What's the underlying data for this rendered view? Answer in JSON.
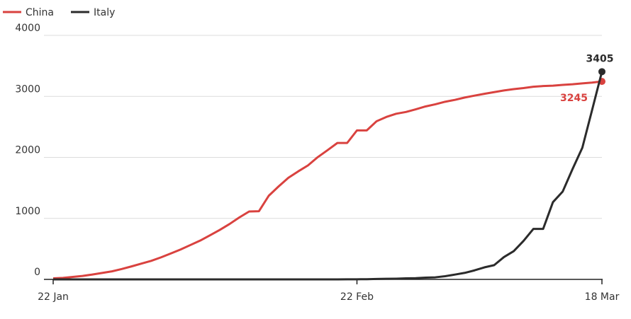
{
  "chart_data": {
    "type": "line",
    "categories": [
      "22 Jan",
      null,
      null,
      null,
      null,
      null,
      null,
      null,
      null,
      null,
      null,
      null,
      null,
      null,
      null,
      null,
      null,
      null,
      null,
      null,
      null,
      null,
      null,
      null,
      null,
      null,
      null,
      null,
      null,
      null,
      null,
      "22 Feb",
      null,
      null,
      null,
      null,
      null,
      null,
      null,
      null,
      null,
      null,
      null,
      null,
      null,
      null,
      null,
      null,
      null,
      null,
      null,
      null,
      null,
      null,
      null,
      null,
      "18 Mar"
    ],
    "series": [
      {
        "name": "China",
        "color": "#d9423f",
        "values": [
          17,
          25,
          41,
          56,
          80,
          106,
          132,
          170,
          213,
          259,
          304,
          361,
          425,
          490,
          563,
          636,
          722,
          811,
          908,
          1016,
          1113,
          1118,
          1371,
          1523,
          1665,
          1770,
          1868,
          2004,
          2118,
          2236,
          2236,
          2442,
          2442,
          2592,
          2663,
          2715,
          2744,
          2788,
          2835,
          2870,
          2912,
          2943,
          2981,
          3012,
          3042,
          3070,
          3097,
          3119,
          3136,
          3158,
          3169,
          3176,
          3189,
          3199,
          3213,
          3226,
          3245
        ]
      },
      {
        "name": "Italy",
        "color": "#2b2b2b",
        "values": [
          0,
          0,
          0,
          0,
          0,
          0,
          0,
          0,
          0,
          0,
          0,
          0,
          0,
          0,
          0,
          0,
          0,
          0,
          0,
          0,
          0,
          0,
          0,
          0,
          0,
          0,
          0,
          0,
          0,
          0,
          1,
          2,
          3,
          7,
          10,
          12,
          17,
          21,
          29,
          34,
          52,
          79,
          107,
          148,
          197,
          233,
          366,
          463,
          631,
          827,
          827,
          1266,
          1441,
          1809,
          2158,
          2778,
          3405
        ]
      }
    ],
    "ylim": [
      0,
      4000
    ],
    "yticks": [
      0,
      1000,
      2000,
      3000,
      4000
    ],
    "grid": true
  }
}
